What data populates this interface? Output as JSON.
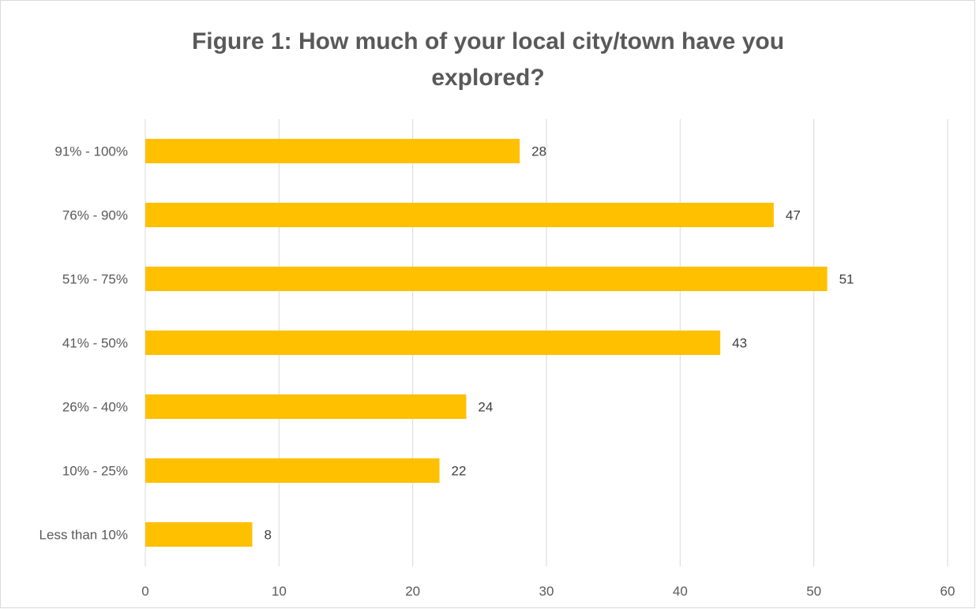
{
  "chart_data": {
    "type": "bar",
    "orientation": "horizontal",
    "title_lines": [
      "Figure 1: How much of your local city/town have you",
      "explored?"
    ],
    "categories": [
      "Less than 10%",
      "10% - 25%",
      "26% - 40%",
      "41% - 50%",
      "51% - 75%",
      "76% - 90%",
      "91% - 100%"
    ],
    "values": [
      8,
      22,
      24,
      43,
      51,
      47,
      28
    ],
    "xlim": [
      0,
      60
    ],
    "x_ticks": [
      0,
      10,
      20,
      30,
      40,
      50,
      60
    ],
    "xlabel": "",
    "ylabel": "",
    "grid": true,
    "legend": "none",
    "bar_color": "#FFC000",
    "gridline_color": "#d9d9d9",
    "data_labels": true
  }
}
